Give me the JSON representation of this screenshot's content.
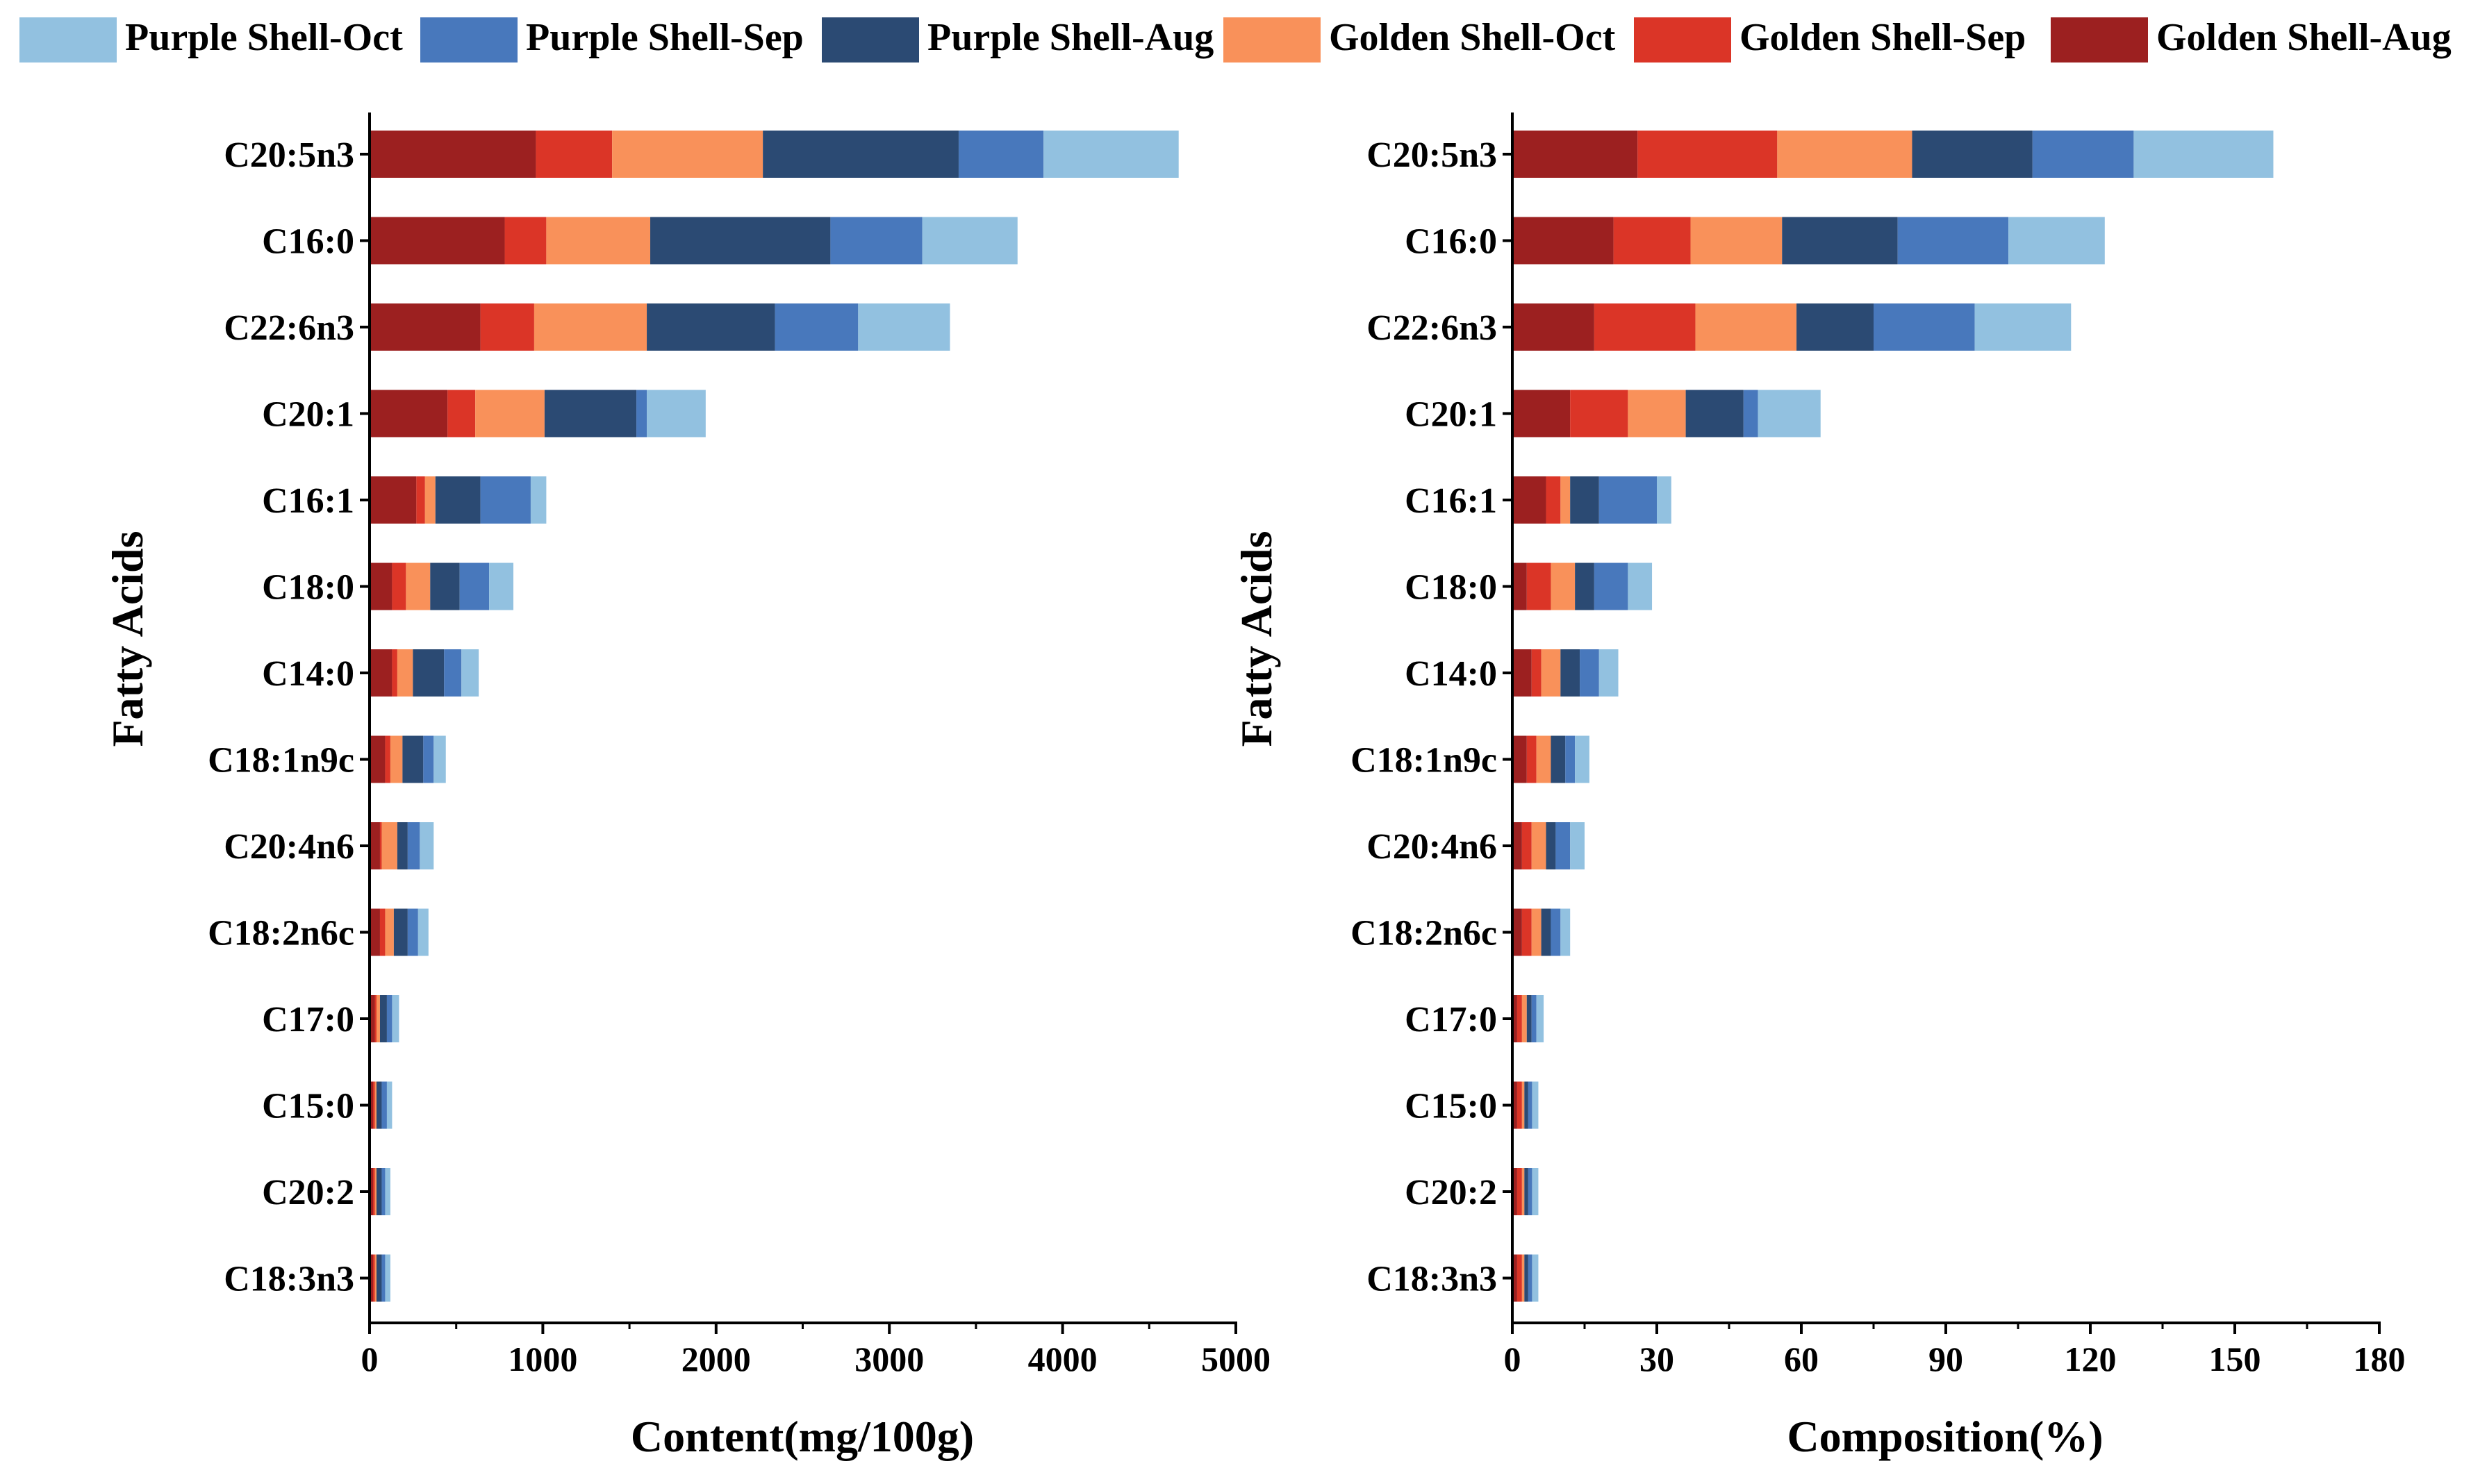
{
  "colors": {
    "Purple Shell-Oct": "#92C1E0",
    "Purple Shell-Sep": "#4878BC",
    "Purple Shell-Aug": "#2B4A73",
    "Golden Shell-Oct": "#F9915A",
    "Golden Shell-Sep": "#DB3527",
    "Golden Shell-Aug": "#9C2020"
  },
  "legend": {
    "items": [
      "Purple Shell-Oct",
      "Purple Shell-Sep",
      "Purple Shell-Aug",
      "Golden Shell-Oct",
      "Golden Shell-Sep",
      "Golden Shell-Aug"
    ]
  },
  "chart_data": [
    {
      "type": "bar",
      "orientation": "horizontal",
      "stacked": true,
      "xlabel": "Content(mg/100g)",
      "ylabel": "Fatty Acids",
      "xlim": [
        0,
        5000
      ],
      "xticks": [
        0,
        1000,
        2000,
        3000,
        4000,
        5000
      ],
      "categories": [
        "C20:5n3",
        "C16:0",
        "C22:6n3",
        "C20:1",
        "C16:1",
        "C18:0",
        "C14:0",
        "C18:1n9c",
        "C20:4n6",
        "C18:2n6c",
        "C17:0",
        "C15:0",
        "C20:2",
        "C18:3n3"
      ],
      "series": [
        {
          "name": "Golden Shell-Aug",
          "values": [
            960,
            780,
            640,
            450,
            270,
            130,
            130,
            90,
            60,
            60,
            30,
            20,
            20,
            20
          ]
        },
        {
          "name": "Golden Shell-Sep",
          "values": [
            440,
            240,
            310,
            160,
            50,
            80,
            30,
            30,
            10,
            30,
            10,
            10,
            10,
            10
          ]
        },
        {
          "name": "Golden Shell-Oct",
          "values": [
            870,
            600,
            650,
            400,
            60,
            140,
            90,
            70,
            90,
            50,
            20,
            10,
            10,
            10
          ]
        },
        {
          "name": "Purple Shell-Aug",
          "values": [
            1130,
            1040,
            740,
            530,
            260,
            170,
            180,
            120,
            60,
            80,
            40,
            30,
            30,
            30
          ]
        },
        {
          "name": "Purple Shell-Sep",
          "values": [
            490,
            530,
            480,
            60,
            290,
            170,
            100,
            60,
            70,
            60,
            30,
            30,
            20,
            20
          ]
        },
        {
          "name": "Purple Shell-Oct",
          "values": [
            780,
            550,
            530,
            340,
            90,
            140,
            100,
            70,
            80,
            60,
            40,
            30,
            30,
            30
          ]
        }
      ]
    },
    {
      "type": "bar",
      "orientation": "horizontal",
      "stacked": true,
      "xlabel": "Composition(%)",
      "ylabel": "Fatty Acids",
      "xlim": [
        0,
        180
      ],
      "xticks": [
        0,
        30,
        60,
        90,
        120,
        150,
        180
      ],
      "categories": [
        "C20:5n3",
        "C16:0",
        "C22:6n3",
        "C20:1",
        "C16:1",
        "C18:0",
        "C14:0",
        "C18:1n9c",
        "C20:4n6",
        "C18:2n6c",
        "C17:0",
        "C15:0",
        "C20:2",
        "C18:3n3"
      ],
      "series": [
        {
          "name": "Golden Shell-Aug",
          "values": [
            26,
            21,
            17,
            12,
            7,
            3,
            4,
            3,
            2,
            2,
            1,
            1,
            1,
            1
          ]
        },
        {
          "name": "Golden Shell-Sep",
          "values": [
            29,
            16,
            21,
            12,
            3,
            5,
            2,
            2,
            2,
            2,
            1,
            1,
            1,
            1
          ]
        },
        {
          "name": "Golden Shell-Oct",
          "values": [
            28,
            19,
            21,
            12,
            2,
            5,
            4,
            3,
            3,
            2,
            1,
            0.5,
            0.5,
            0.5
          ]
        },
        {
          "name": "Purple Shell-Aug",
          "values": [
            25,
            24,
            16,
            12,
            6,
            4,
            4,
            3,
            2,
            2,
            1,
            0.8,
            0.8,
            0.8
          ]
        },
        {
          "name": "Purple Shell-Sep",
          "values": [
            21,
            23,
            21,
            3,
            12,
            7,
            4,
            2,
            3,
            2,
            1,
            0.8,
            0.8,
            0.8
          ]
        },
        {
          "name": "Purple Shell-Oct",
          "values": [
            29,
            20,
            20,
            13,
            3,
            5,
            4,
            3,
            3,
            2,
            1.5,
            1.3,
            1.3,
            1.3
          ]
        }
      ]
    }
  ]
}
